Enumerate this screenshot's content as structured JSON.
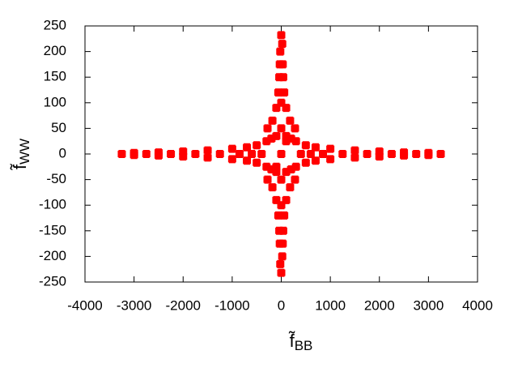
{
  "chart_data": {
    "type": "scatter",
    "color": "#ff0000",
    "xlabel": {
      "text": "f̃",
      "subscript": "BB"
    },
    "ylabel": {
      "text": "f̃",
      "subscript": "WW"
    },
    "xlim": [
      -4000,
      4000
    ],
    "xticks": [
      -4000,
      -3000,
      -2000,
      -1000,
      0,
      1000,
      2000,
      3000,
      4000
    ],
    "ylim": [
      -250,
      250
    ],
    "yticks": [
      -250,
      -200,
      -150,
      -100,
      -50,
      0,
      50,
      100,
      150,
      200,
      250
    ],
    "x": [
      -3250,
      -3000,
      -3000,
      -2750,
      -2500,
      -2500,
      -2250,
      -2000,
      -2000,
      -1750,
      -1500,
      -1500,
      -1250,
      -1000,
      -1000,
      -850,
      -700,
      -700,
      -600,
      -500,
      -500,
      -400,
      -300,
      -300,
      -200,
      -200,
      -100,
      -100,
      0,
      3250,
      3000,
      3000,
      2750,
      2500,
      2500,
      2250,
      2000,
      2000,
      1750,
      1500,
      1500,
      1250,
      1000,
      1000,
      850,
      700,
      700,
      600,
      500,
      500,
      400,
      300,
      300,
      200,
      200,
      100,
      100,
      0,
      0,
      20,
      -20,
      -20,
      20,
      30,
      -30,
      30,
      -30,
      40,
      -40,
      40,
      -40,
      60,
      -60,
      60,
      -60,
      100,
      -100,
      100,
      -100,
      180,
      -180,
      180,
      -180,
      280,
      -280,
      280,
      -280,
      0,
      0,
      0,
      0,
      100,
      -100
    ],
    "y": [
      0,
      2,
      -2,
      0,
      3,
      -3,
      0,
      5,
      -5,
      0,
      7,
      -7,
      0,
      10,
      -10,
      0,
      13,
      -13,
      0,
      17,
      -17,
      0,
      25,
      -25,
      30,
      -30,
      35,
      -35,
      0,
      0,
      2,
      -2,
      0,
      3,
      -3,
      0,
      5,
      -5,
      0,
      7,
      -7,
      0,
      10,
      -10,
      0,
      13,
      -13,
      0,
      17,
      -17,
      0,
      25,
      -25,
      30,
      -30,
      35,
      -35,
      232,
      -232,
      215,
      -215,
      200,
      -200,
      175,
      175,
      -175,
      -175,
      150,
      150,
      -150,
      -150,
      120,
      120,
      -120,
      -120,
      90,
      90,
      -90,
      -90,
      65,
      65,
      -65,
      -65,
      50,
      50,
      -50,
      -50,
      100,
      -100,
      50,
      -50,
      25,
      -25
    ]
  }
}
